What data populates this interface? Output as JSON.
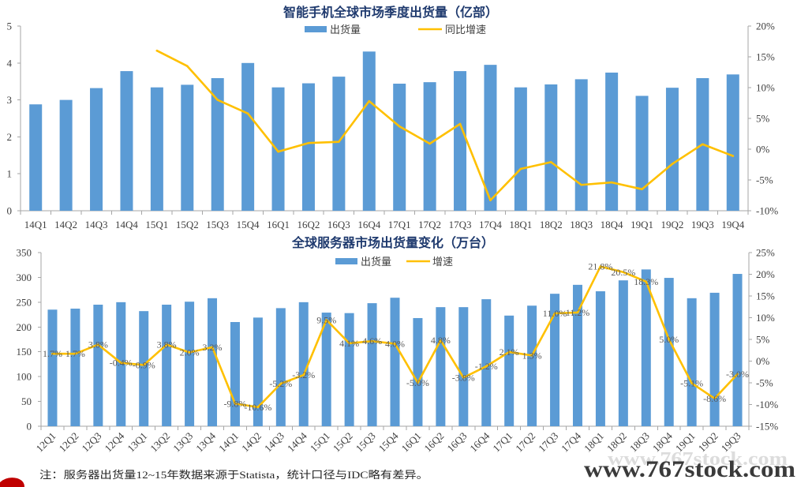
{
  "chart_data": [
    {
      "type": "bar",
      "title": "智能手机全球市场季度出货量（亿部）",
      "legend": "top-center",
      "grid": false,
      "categories": [
        "14Q1",
        "14Q2",
        "14Q3",
        "14Q4",
        "15Q1",
        "15Q2",
        "15Q3",
        "15Q4",
        "16Q1",
        "16Q2",
        "16Q3",
        "16Q4",
        "17Q1",
        "17Q2",
        "17Q3",
        "17Q4",
        "18Q1",
        "18Q2",
        "18Q3",
        "18Q4",
        "19Q1",
        "19Q2",
        "19Q3",
        "19Q4"
      ],
      "series": [
        {
          "name": "出货量",
          "type": "bar",
          "axis": "left",
          "color": "#5B9BD5",
          "values": [
            2.88,
            3.0,
            3.32,
            3.78,
            3.34,
            3.41,
            3.59,
            4.0,
            3.34,
            3.45,
            3.63,
            4.31,
            3.44,
            3.48,
            3.78,
            3.95,
            3.34,
            3.42,
            3.56,
            3.74,
            3.11,
            3.33,
            3.59,
            3.69
          ]
        },
        {
          "name": "同比增速",
          "type": "line",
          "axis": "right",
          "color": "#FFC000",
          "values": [
            null,
            null,
            null,
            null,
            16.0,
            13.5,
            8.0,
            5.8,
            -0.4,
            1.0,
            1.2,
            7.8,
            3.7,
            0.9,
            4.1,
            -8.3,
            -3.2,
            -2.1,
            -5.8,
            -5.4,
            -6.5,
            -2.4,
            0.8,
            -1.1
          ]
        }
      ],
      "y_left": {
        "lim": [
          0,
          5
        ],
        "ticks": [
          "0",
          "1",
          "2",
          "3",
          "4",
          "5"
        ]
      },
      "y_right": {
        "lim": [
          -10,
          20
        ],
        "ticks": [
          "-10%",
          "-5%",
          "0%",
          "5%",
          "10%",
          "15%",
          "20%"
        ]
      }
    },
    {
      "type": "bar",
      "title": "全球服务器市场出货量变化（万台）",
      "legend": "top-center",
      "grid": false,
      "categories": [
        "12Q1",
        "12Q2",
        "12Q3",
        "12Q4",
        "13Q1",
        "13Q2",
        "13Q3",
        "13Q4",
        "14Q1",
        "14Q2",
        "14Q3",
        "14Q4",
        "15Q1",
        "15Q2",
        "15Q3",
        "15Q4",
        "16Q1",
        "16Q2",
        "16Q3",
        "16Q4",
        "17Q1",
        "17Q2",
        "17Q3",
        "17Q4",
        "18Q1",
        "18Q2",
        "18Q3",
        "18Q4",
        "19Q1",
        "19Q2",
        "19Q3"
      ],
      "series": [
        {
          "name": "出货量",
          "type": "bar",
          "axis": "left",
          "color": "#5B9BD5",
          "values": [
            235,
            237,
            245,
            250,
            232,
            245,
            251,
            258,
            210,
            219,
            238,
            250,
            229,
            228,
            248,
            259,
            218,
            240,
            240,
            256,
            223,
            243,
            267,
            285,
            272,
            294,
            316,
            299,
            258,
            269,
            307
          ]
        },
        {
          "name": "增速",
          "type": "line",
          "axis": "right",
          "color": "#FFC000",
          "values": [
            1.7,
            1.7,
            3.8,
            -0.4,
            -0.9,
            3.8,
            2.0,
            3.2,
            -9.8,
            -10.6,
            -5.2,
            -3.2,
            9.5,
            4.1,
            4.6,
            4.0,
            -5.0,
            4.8,
            -3.8,
            -1.2,
            2.1,
            1.3,
            11.0,
            11.2,
            21.8,
            20.5,
            18.3,
            5.0,
            -5.1,
            -8.6,
            -3.0
          ],
          "data_labels": [
            "1.7%",
            "1.7%",
            "3.8%",
            "-0.4%",
            "-0.9%",
            "3.8%",
            "2.0%",
            "3.2%",
            "-9.8%",
            "-10.6%",
            "-5.2%",
            "-3.2%",
            "9.5%",
            "4.1%",
            "4.6%",
            "4.0%",
            "-5.0%",
            "4.8%",
            "-3.8%",
            "-1.2%",
            "2.1%",
            "1.3%",
            "11.0%",
            "11.2%",
            "21.8%",
            "20.5%",
            "18.3%",
            "5.0%",
            "-5.1%",
            "-8.6%",
            "-3.0%"
          ]
        }
      ],
      "y_left": {
        "lim": [
          0,
          350
        ],
        "ticks": [
          "0",
          "50",
          "100",
          "150",
          "200",
          "250",
          "300",
          "350"
        ]
      },
      "y_right": {
        "lim": [
          -15,
          25
        ],
        "ticks": [
          "-15%",
          "-10%",
          "-5%",
          "0%",
          "5%",
          "10%",
          "15%",
          "20%",
          "25%"
        ]
      }
    }
  ],
  "note": "注：服务器出货量12~15年数据来源于Statista，统计口径与IDC略有差异。",
  "watermark": "www.767stock.com"
}
